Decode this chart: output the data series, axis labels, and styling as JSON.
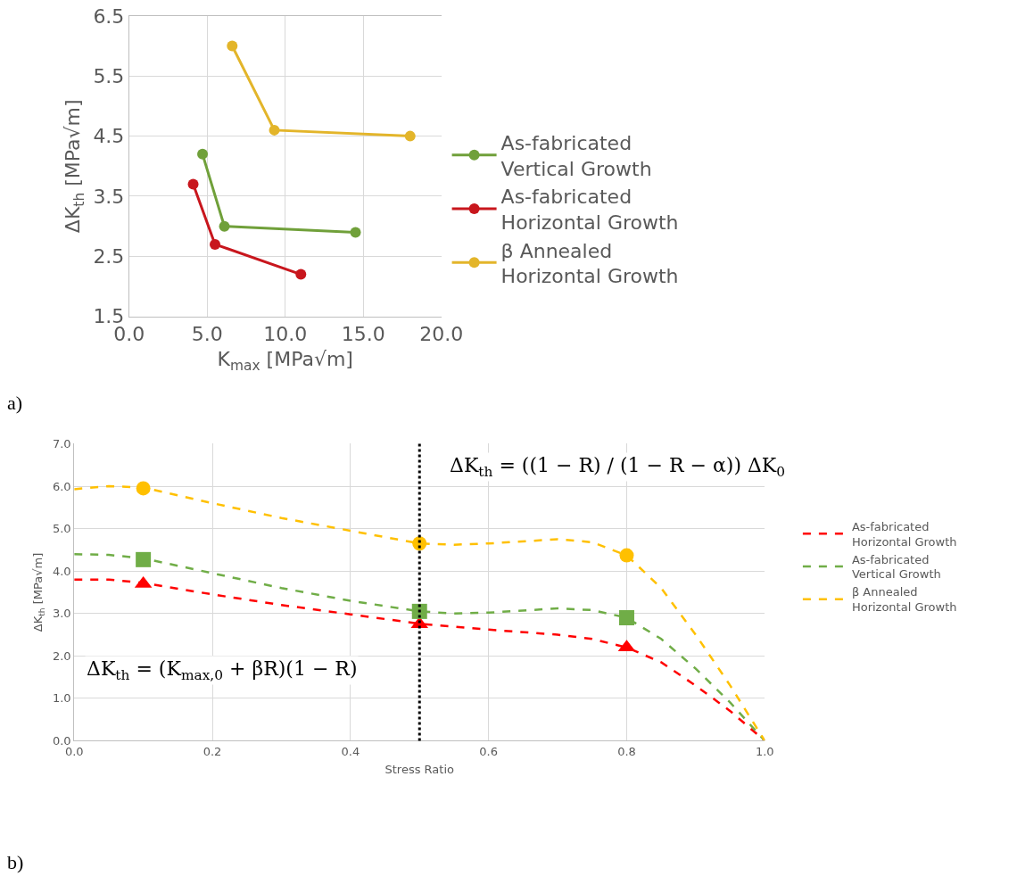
{
  "chart_data": [
    {
      "type": "line",
      "xlabel": "K$_{max}$ [MPa√m]",
      "ylabel": "ΔK$_{th}$ [MPa√m]",
      "xlim": [
        0,
        20
      ],
      "xticks": [
        {
          "value": 0,
          "label": "0.0"
        },
        {
          "value": 5,
          "label": "5.0"
        },
        {
          "value": 10,
          "label": "10.0"
        },
        {
          "value": 15,
          "label": "15.0"
        },
        {
          "value": 20,
          "label": "20.0"
        }
      ],
      "ylim": [
        1.5,
        6.5
      ],
      "yticks": [
        1.5,
        2.5,
        3.5,
        4.5,
        5.5,
        6.5
      ],
      "grid": true,
      "legend": "right",
      "marker": "circle",
      "line_style": "solid",
      "annotations": [
        "a)"
      ],
      "series": [
        {
          "name": "As-fabricated\nVertical Growth",
          "color": "#70a03a",
          "x": [
            4.7,
            6.1,
            14.5
          ],
          "values": [
            4.2,
            3.0,
            2.9
          ]
        },
        {
          "name": "As-fabricated\nHorizontal Growth",
          "color": "#c8161d",
          "x": [
            4.1,
            5.5,
            11.0
          ],
          "values": [
            3.7,
            2.7,
            2.2
          ]
        },
        {
          "name": "β Annealed\nHorizontal Growth",
          "color": "#e3b52a",
          "x": [
            6.6,
            9.3,
            18.0
          ],
          "values": [
            6.0,
            4.6,
            4.5
          ]
        }
      ]
    },
    {
      "type": "line",
      "xlabel": "Stress Ratio",
      "ylabel": "ΔK$_{th}$ [MPa√m]",
      "xlim": [
        0,
        1
      ],
      "xticks": [
        {
          "value": 0,
          "label": "0.0"
        },
        {
          "value": 0.2,
          "label": "0.2"
        },
        {
          "value": 0.4,
          "label": "0.4"
        },
        {
          "value": 0.6,
          "label": "0.6"
        },
        {
          "value": 0.8,
          "label": "0.8"
        },
        {
          "value": 1,
          "label": "1.0"
        }
      ],
      "ylim": [
        0,
        7
      ],
      "yticks": [
        {
          "value": 0,
          "label": "0.0"
        },
        {
          "value": 1,
          "label": "1.0"
        },
        {
          "value": 2,
          "label": "2.0"
        },
        {
          "value": 3,
          "label": "3.0"
        },
        {
          "value": 4,
          "label": "4.0"
        },
        {
          "value": 5,
          "label": "5.0"
        },
        {
          "value": 6,
          "label": "6.0"
        },
        {
          "value": 7,
          "label": "7.0"
        }
      ],
      "grid": true,
      "legend": "right",
      "line_style": "dashed",
      "marker": "none",
      "ref_lines": [
        {
          "axis": "x",
          "value": 0.5,
          "color": "#000000",
          "line_style": "dotted"
        }
      ],
      "annotations": [
        "ΔK$_{th}$ = (K$_{max,0}$ + βR)(1 − R)",
        "ΔK$_{th}$ = ((1 − R) / (1 − R − α)) ΔK$_{0}$",
        "b)"
      ],
      "series": [
        {
          "name": "As-fabricated\nHorizontal Growth",
          "color": "#ff0000",
          "x": [
            0,
            0.05,
            0.1,
            0.2,
            0.3,
            0.4,
            0.5,
            0.6,
            0.7,
            0.75,
            0.8,
            0.85,
            0.9,
            0.95,
            1.0
          ],
          "values": [
            3.8,
            3.8,
            3.72,
            3.45,
            3.2,
            2.98,
            2.76,
            2.62,
            2.5,
            2.4,
            2.2,
            1.85,
            1.3,
            0.7,
            0
          ]
        },
        {
          "name": "As-fabricated\nVertical Growth",
          "color": "#70ad47",
          "x": [
            0,
            0.05,
            0.1,
            0.2,
            0.3,
            0.4,
            0.5,
            0.55,
            0.6,
            0.7,
            0.75,
            0.8,
            0.85,
            0.9,
            0.95,
            1.0
          ],
          "values": [
            4.4,
            4.38,
            4.3,
            3.95,
            3.6,
            3.3,
            3.05,
            3.0,
            3.02,
            3.12,
            3.08,
            2.9,
            2.4,
            1.7,
            0.9,
            0
          ]
        },
        {
          "name": "β Annealed\nHorizontal Growth",
          "color": "#ffc000",
          "x": [
            0,
            0.05,
            0.1,
            0.2,
            0.3,
            0.4,
            0.5,
            0.55,
            0.6,
            0.7,
            0.75,
            0.8,
            0.85,
            0.9,
            0.95,
            1.0
          ],
          "values": [
            5.93,
            6.0,
            5.97,
            5.6,
            5.25,
            4.95,
            4.65,
            4.62,
            4.65,
            4.75,
            4.68,
            4.37,
            3.6,
            2.5,
            1.3,
            0
          ]
        },
        {
          "type": "scatter",
          "marker": "triangle",
          "color": "#ff0000",
          "x": [
            0.1,
            0.5,
            0.8
          ],
          "values": [
            3.7,
            2.75,
            2.2
          ]
        },
        {
          "type": "scatter",
          "marker": "square",
          "color": "#70ad47",
          "x": [
            0.1,
            0.5,
            0.8
          ],
          "values": [
            4.27,
            3.05,
            2.9
          ]
        },
        {
          "type": "scatter",
          "marker": "circle",
          "color": "#ffc000",
          "x": [
            0.1,
            0.5,
            0.8
          ],
          "values": [
            5.95,
            4.65,
            4.37
          ]
        }
      ]
    }
  ]
}
